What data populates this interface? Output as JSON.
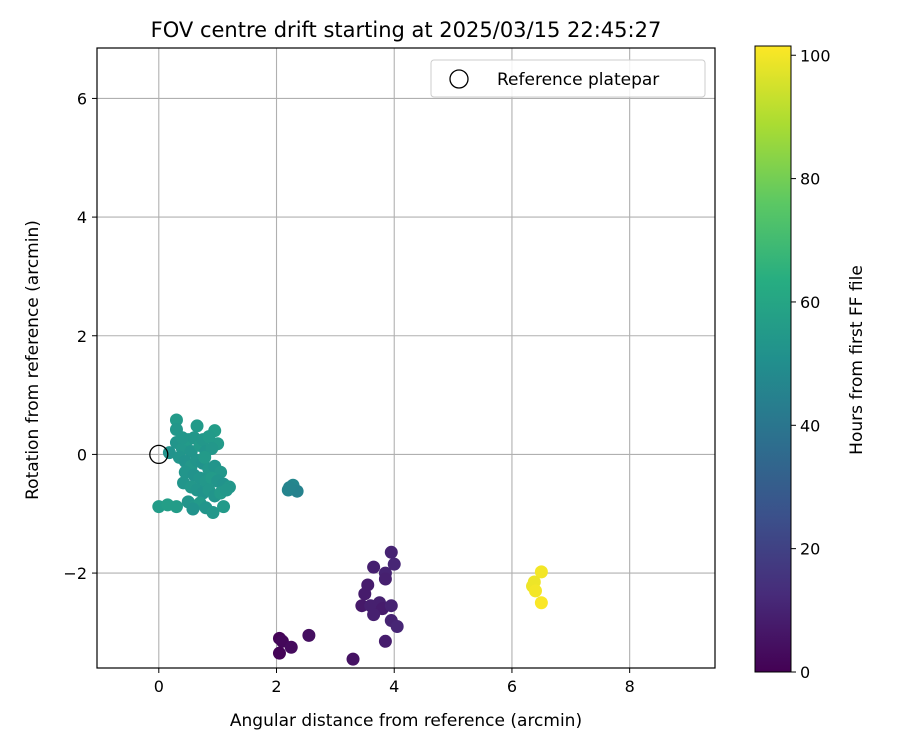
{
  "chart_data": {
    "type": "scatter",
    "title": "FOV centre drift starting at 2025/03/15 22:45:27",
    "xlabel": "Angular distance from reference (arcmin)",
    "ylabel": "Rotation from reference (arcmin)",
    "xlim": [
      -1.05,
      9.45
    ],
    "ylim": [
      -3.6,
      6.85
    ],
    "xticks": [
      0,
      2,
      4,
      6,
      8
    ],
    "xtick_labels": [
      "0",
      "2",
      "4",
      "6",
      "8"
    ],
    "yticks": [
      -2,
      0,
      2,
      4,
      6
    ],
    "ytick_labels": [
      "−2",
      "0",
      "2",
      "4",
      "6"
    ],
    "grid": true,
    "legend": {
      "position": "top-right",
      "entries": [
        "Reference platepar"
      ]
    },
    "reference_point": {
      "x": 0,
      "y": 0,
      "label": "Reference platepar"
    },
    "colorbar": {
      "label": "Hours from first FF file",
      "range": [
        0,
        101.5
      ],
      "ticks": [
        0,
        20,
        40,
        60,
        80,
        100
      ],
      "tick_labels": [
        "0",
        "20",
        "40",
        "60",
        "80",
        "100"
      ],
      "colormap": "viridis"
    },
    "points": [
      {
        "x": 2.05,
        "y": -3.1,
        "c": 1
      },
      {
        "x": 2.1,
        "y": -3.15,
        "c": 2
      },
      {
        "x": 2.05,
        "y": -3.35,
        "c": 1
      },
      {
        "x": 2.25,
        "y": -3.25,
        "c": 3
      },
      {
        "x": 2.55,
        "y": -3.05,
        "c": 4
      },
      {
        "x": 3.3,
        "y": -3.45,
        "c": 5
      },
      {
        "x": 3.95,
        "y": -1.65,
        "c": 10
      },
      {
        "x": 4.0,
        "y": -1.85,
        "c": 11
      },
      {
        "x": 3.65,
        "y": -1.9,
        "c": 9
      },
      {
        "x": 3.85,
        "y": -2.0,
        "c": 10
      },
      {
        "x": 3.85,
        "y": -2.1,
        "c": 9
      },
      {
        "x": 3.55,
        "y": -2.2,
        "c": 8
      },
      {
        "x": 3.5,
        "y": -2.35,
        "c": 8
      },
      {
        "x": 3.75,
        "y": -2.5,
        "c": 9
      },
      {
        "x": 3.45,
        "y": -2.55,
        "c": 7
      },
      {
        "x": 3.6,
        "y": -2.55,
        "c": 9
      },
      {
        "x": 3.8,
        "y": -2.6,
        "c": 8
      },
      {
        "x": 3.95,
        "y": -2.55,
        "c": 10
      },
      {
        "x": 3.65,
        "y": -2.7,
        "c": 9
      },
      {
        "x": 3.95,
        "y": -2.8,
        "c": 10
      },
      {
        "x": 4.05,
        "y": -2.9,
        "c": 11
      },
      {
        "x": 3.85,
        "y": -3.15,
        "c": 8
      },
      {
        "x": 6.5,
        "y": -1.98,
        "c": 100
      },
      {
        "x": 6.38,
        "y": -2.15,
        "c": 99
      },
      {
        "x": 6.35,
        "y": -2.22,
        "c": 99
      },
      {
        "x": 6.4,
        "y": -2.3,
        "c": 100
      },
      {
        "x": 6.5,
        "y": -2.5,
        "c": 101
      },
      {
        "x": 2.2,
        "y": -0.6,
        "c": 46
      },
      {
        "x": 2.28,
        "y": -0.52,
        "c": 47
      },
      {
        "x": 2.35,
        "y": -0.62,
        "c": 45
      },
      {
        "x": 2.22,
        "y": -0.56,
        "c": 46
      },
      {
        "x": 0.0,
        "y": -0.88,
        "c": 56
      },
      {
        "x": 0.15,
        "y": -0.85,
        "c": 57
      },
      {
        "x": 0.3,
        "y": -0.88,
        "c": 56
      },
      {
        "x": 0.3,
        "y": 0.58,
        "c": 55
      },
      {
        "x": 0.3,
        "y": 0.42,
        "c": 54
      },
      {
        "x": 0.65,
        "y": 0.48,
        "c": 55
      },
      {
        "x": 0.95,
        "y": 0.4,
        "c": 56
      },
      {
        "x": 1.0,
        "y": 0.18,
        "c": 55
      },
      {
        "x": 0.18,
        "y": 0.03,
        "c": 52
      },
      {
        "x": 0.3,
        "y": 0.2,
        "c": 53
      },
      {
        "x": 0.4,
        "y": 0.1,
        "c": 54
      },
      {
        "x": 0.5,
        "y": 0.25,
        "c": 55
      },
      {
        "x": 0.55,
        "y": 0.05,
        "c": 53
      },
      {
        "x": 0.6,
        "y": 0.28,
        "c": 54
      },
      {
        "x": 0.7,
        "y": 0.15,
        "c": 55
      },
      {
        "x": 0.75,
        "y": 0.25,
        "c": 54
      },
      {
        "x": 0.8,
        "y": 0.05,
        "c": 53
      },
      {
        "x": 0.85,
        "y": 0.3,
        "c": 55
      },
      {
        "x": 0.9,
        "y": 0.1,
        "c": 54
      },
      {
        "x": 0.35,
        "y": -0.05,
        "c": 53
      },
      {
        "x": 0.45,
        "y": -0.12,
        "c": 52
      },
      {
        "x": 0.55,
        "y": -0.2,
        "c": 54
      },
      {
        "x": 0.65,
        "y": -0.1,
        "c": 53
      },
      {
        "x": 0.75,
        "y": -0.15,
        "c": 52
      },
      {
        "x": 0.85,
        "y": -0.25,
        "c": 54
      },
      {
        "x": 0.95,
        "y": -0.2,
        "c": 53
      },
      {
        "x": 1.05,
        "y": -0.3,
        "c": 54
      },
      {
        "x": 0.45,
        "y": -0.3,
        "c": 53
      },
      {
        "x": 0.6,
        "y": -0.35,
        "c": 52
      },
      {
        "x": 0.7,
        "y": -0.4,
        "c": 53
      },
      {
        "x": 0.8,
        "y": -0.45,
        "c": 54
      },
      {
        "x": 0.9,
        "y": -0.4,
        "c": 55
      },
      {
        "x": 1.0,
        "y": -0.45,
        "c": 53
      },
      {
        "x": 1.1,
        "y": -0.5,
        "c": 52
      },
      {
        "x": 1.2,
        "y": -0.55,
        "c": 54
      },
      {
        "x": 0.42,
        "y": -0.48,
        "c": 53
      },
      {
        "x": 0.55,
        "y": -0.55,
        "c": 54
      },
      {
        "x": 0.65,
        "y": -0.6,
        "c": 53
      },
      {
        "x": 0.75,
        "y": -0.65,
        "c": 52
      },
      {
        "x": 0.85,
        "y": -0.6,
        "c": 54
      },
      {
        "x": 0.95,
        "y": -0.7,
        "c": 53
      },
      {
        "x": 1.05,
        "y": -0.65,
        "c": 55
      },
      {
        "x": 1.15,
        "y": -0.6,
        "c": 54
      },
      {
        "x": 0.5,
        "y": -0.8,
        "c": 53
      },
      {
        "x": 0.6,
        "y": -0.88,
        "c": 54
      },
      {
        "x": 0.7,
        "y": -0.82,
        "c": 55
      },
      {
        "x": 0.8,
        "y": -0.9,
        "c": 53
      },
      {
        "x": 0.92,
        "y": -0.98,
        "c": 54
      },
      {
        "x": 1.1,
        "y": -0.88,
        "c": 55
      },
      {
        "x": 0.58,
        "y": -0.92,
        "c": 52
      },
      {
        "x": 0.4,
        "y": 0.28,
        "c": 54
      },
      {
        "x": 0.78,
        "y": -0.05,
        "c": 55
      }
    ]
  }
}
